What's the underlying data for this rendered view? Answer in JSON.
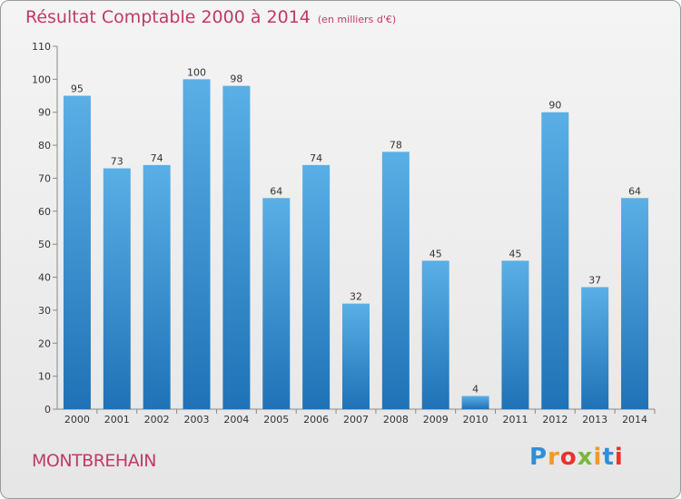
{
  "title": "Résultat Comptable 2000 à 2014",
  "unit_note": "(en milliers d'€)",
  "commune": "MONTBREHAIN",
  "brand": {
    "letters": [
      "P",
      "r",
      "o",
      "x",
      "i",
      "t",
      "i"
    ],
    "colors": [
      "#2f8fd8",
      "#f39a1e",
      "#e8322b",
      "#79b83a",
      "#f39a1e",
      "#2f8fd8",
      "#e8322b"
    ]
  },
  "colors": {
    "title": "#c03a67",
    "bar_light": "#5aafe6",
    "bar_dark": "#1f72b6"
  },
  "chart_data": {
    "type": "bar",
    "categories": [
      "2000",
      "2001",
      "2002",
      "2003",
      "2004",
      "2005",
      "2006",
      "2007",
      "2008",
      "2009",
      "2010",
      "2011",
      "2012",
      "2013",
      "2014"
    ],
    "values": [
      95,
      73,
      74,
      100,
      98,
      64,
      74,
      32,
      78,
      45,
      4,
      45,
      90,
      37,
      64
    ],
    "title": "Résultat Comptable 2000 à 2014",
    "xlabel": "",
    "ylabel": "",
    "ylim": [
      0,
      110
    ],
    "yticks": [
      0,
      10,
      20,
      30,
      40,
      50,
      60,
      70,
      80,
      90,
      100,
      110
    ],
    "grid": false
  }
}
